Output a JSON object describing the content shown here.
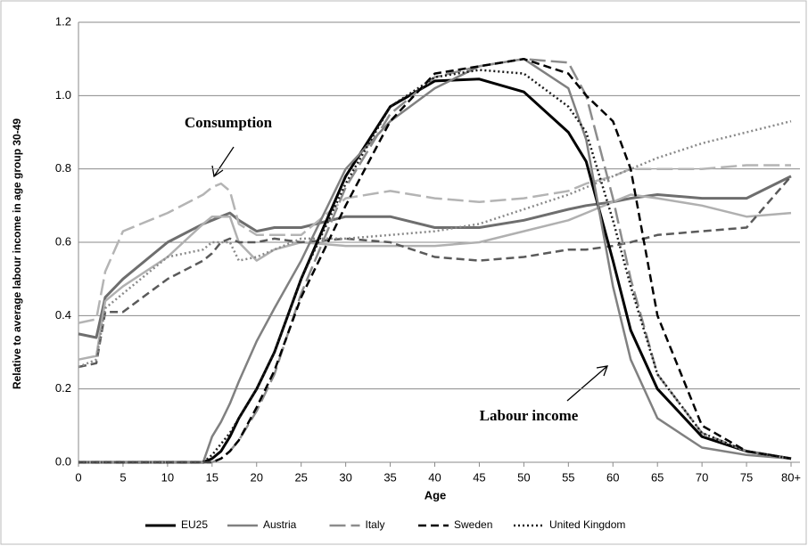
{
  "chart_data": {
    "type": "line",
    "y_label": "Relative to average labour income in age group 30-49",
    "x_label": "Age",
    "annotations": [
      "Consumption",
      "Labour income"
    ],
    "x": [
      0,
      2,
      3,
      5,
      10,
      14,
      15,
      16,
      17,
      18,
      20,
      22,
      25,
      30,
      35,
      40,
      45,
      50,
      55,
      57,
      60,
      62,
      65,
      70,
      75,
      80
    ],
    "xlim": [
      0,
      81
    ],
    "xticks": [
      0,
      5,
      10,
      15,
      20,
      25,
      30,
      35,
      40,
      45,
      50,
      55,
      60,
      65,
      70,
      75,
      {
        "value": 80,
        "label": "80+"
      }
    ],
    "ylim": [
      0,
      1.2
    ],
    "yticks": [
      {
        "value": 0,
        "label": "0.0"
      },
      0.2,
      0.4,
      0.6,
      0.8,
      {
        "value": 1,
        "label": "1.0"
      },
      1.2
    ],
    "grid": true,
    "legend": "bottom",
    "series": [
      {
        "name": "EU25",
        "color": "#000000",
        "consumption_color": "#6e6e6e",
        "dash": "solid",
        "labour_income": [
          0,
          0,
          0,
          0,
          0,
          0,
          0.01,
          0.03,
          0.07,
          0.12,
          0.2,
          0.3,
          0.5,
          0.78,
          0.97,
          1.04,
          1.045,
          1.01,
          0.9,
          0.82,
          0.55,
          0.36,
          0.2,
          0.07,
          0.03,
          0.01
        ],
        "consumption": [
          0.35,
          0.34,
          0.45,
          0.5,
          0.6,
          0.65,
          0.66,
          0.67,
          0.68,
          0.66,
          0.63,
          0.64,
          0.64,
          0.67,
          0.67,
          0.64,
          0.64,
          0.66,
          0.69,
          0.7,
          0.71,
          0.72,
          0.73,
          0.72,
          0.72,
          0.78
        ]
      },
      {
        "name": "Austria",
        "color": "#808080",
        "consumption_color": "#b0b0b0",
        "dash": "solid",
        "labour_income": [
          0,
          0,
          0,
          0,
          0,
          0,
          0.07,
          0.11,
          0.16,
          0.22,
          0.33,
          0.42,
          0.55,
          0.8,
          0.93,
          1.02,
          1.08,
          1.1,
          1.02,
          0.88,
          0.48,
          0.28,
          0.12,
          0.04,
          0.02,
          0.01
        ],
        "consumption": [
          0.28,
          0.29,
          0.44,
          0.48,
          0.56,
          0.65,
          0.67,
          0.67,
          0.67,
          0.6,
          0.55,
          0.58,
          0.6,
          0.59,
          0.59,
          0.59,
          0.6,
          0.63,
          0.66,
          0.68,
          0.71,
          0.73,
          0.72,
          0.7,
          0.67,
          0.68
        ]
      },
      {
        "name": "Italy",
        "color": "#8c8c8c",
        "consumption_color": "#b4b4b4",
        "dash": "long-dash",
        "labour_income": [
          0,
          0,
          0,
          0,
          0,
          0,
          0,
          0.01,
          0.03,
          0.06,
          0.14,
          0.24,
          0.46,
          0.75,
          0.95,
          1.05,
          1.08,
          1.1,
          1.09,
          1.0,
          0.72,
          0.5,
          0.24,
          0.08,
          0.03,
          0.01
        ],
        "consumption": [
          0.38,
          0.39,
          0.52,
          0.63,
          0.68,
          0.73,
          0.75,
          0.76,
          0.74,
          0.65,
          0.62,
          0.62,
          0.62,
          0.72,
          0.74,
          0.72,
          0.71,
          0.72,
          0.74,
          0.76,
          0.78,
          0.8,
          0.8,
          0.8,
          0.81,
          0.81
        ]
      },
      {
        "name": "Sweden",
        "color": "#000000",
        "consumption_color": "#5a5a5a",
        "dash": "dash",
        "labour_income": [
          0,
          0,
          0,
          0,
          0,
          0,
          0,
          0.01,
          0.03,
          0.06,
          0.15,
          0.25,
          0.45,
          0.7,
          0.93,
          1.06,
          1.08,
          1.1,
          1.06,
          1.0,
          0.93,
          0.8,
          0.4,
          0.1,
          0.03,
          0.01
        ],
        "consumption": [
          0.26,
          0.27,
          0.41,
          0.41,
          0.5,
          0.55,
          0.57,
          0.6,
          0.61,
          0.6,
          0.6,
          0.61,
          0.6,
          0.61,
          0.6,
          0.56,
          0.55,
          0.56,
          0.58,
          0.58,
          0.59,
          0.6,
          0.62,
          0.63,
          0.64,
          0.78
        ]
      },
      {
        "name": "United Kingdom",
        "color": "#1a1a1a",
        "consumption_color": "#8a8a8a",
        "dash": "dot",
        "labour_income": [
          0,
          0,
          0,
          0,
          0,
          0,
          0.02,
          0.05,
          0.08,
          0.12,
          0.2,
          0.3,
          0.5,
          0.76,
          0.97,
          1.05,
          1.07,
          1.06,
          0.97,
          0.9,
          0.66,
          0.48,
          0.24,
          0.08,
          0.03,
          0.01
        ],
        "consumption": [
          0.26,
          0.28,
          0.42,
          0.46,
          0.56,
          0.58,
          0.6,
          0.6,
          0.6,
          0.55,
          0.56,
          0.58,
          0.61,
          0.61,
          0.62,
          0.63,
          0.65,
          0.69,
          0.73,
          0.75,
          0.78,
          0.8,
          0.83,
          0.87,
          0.9,
          0.93
        ]
      }
    ]
  }
}
